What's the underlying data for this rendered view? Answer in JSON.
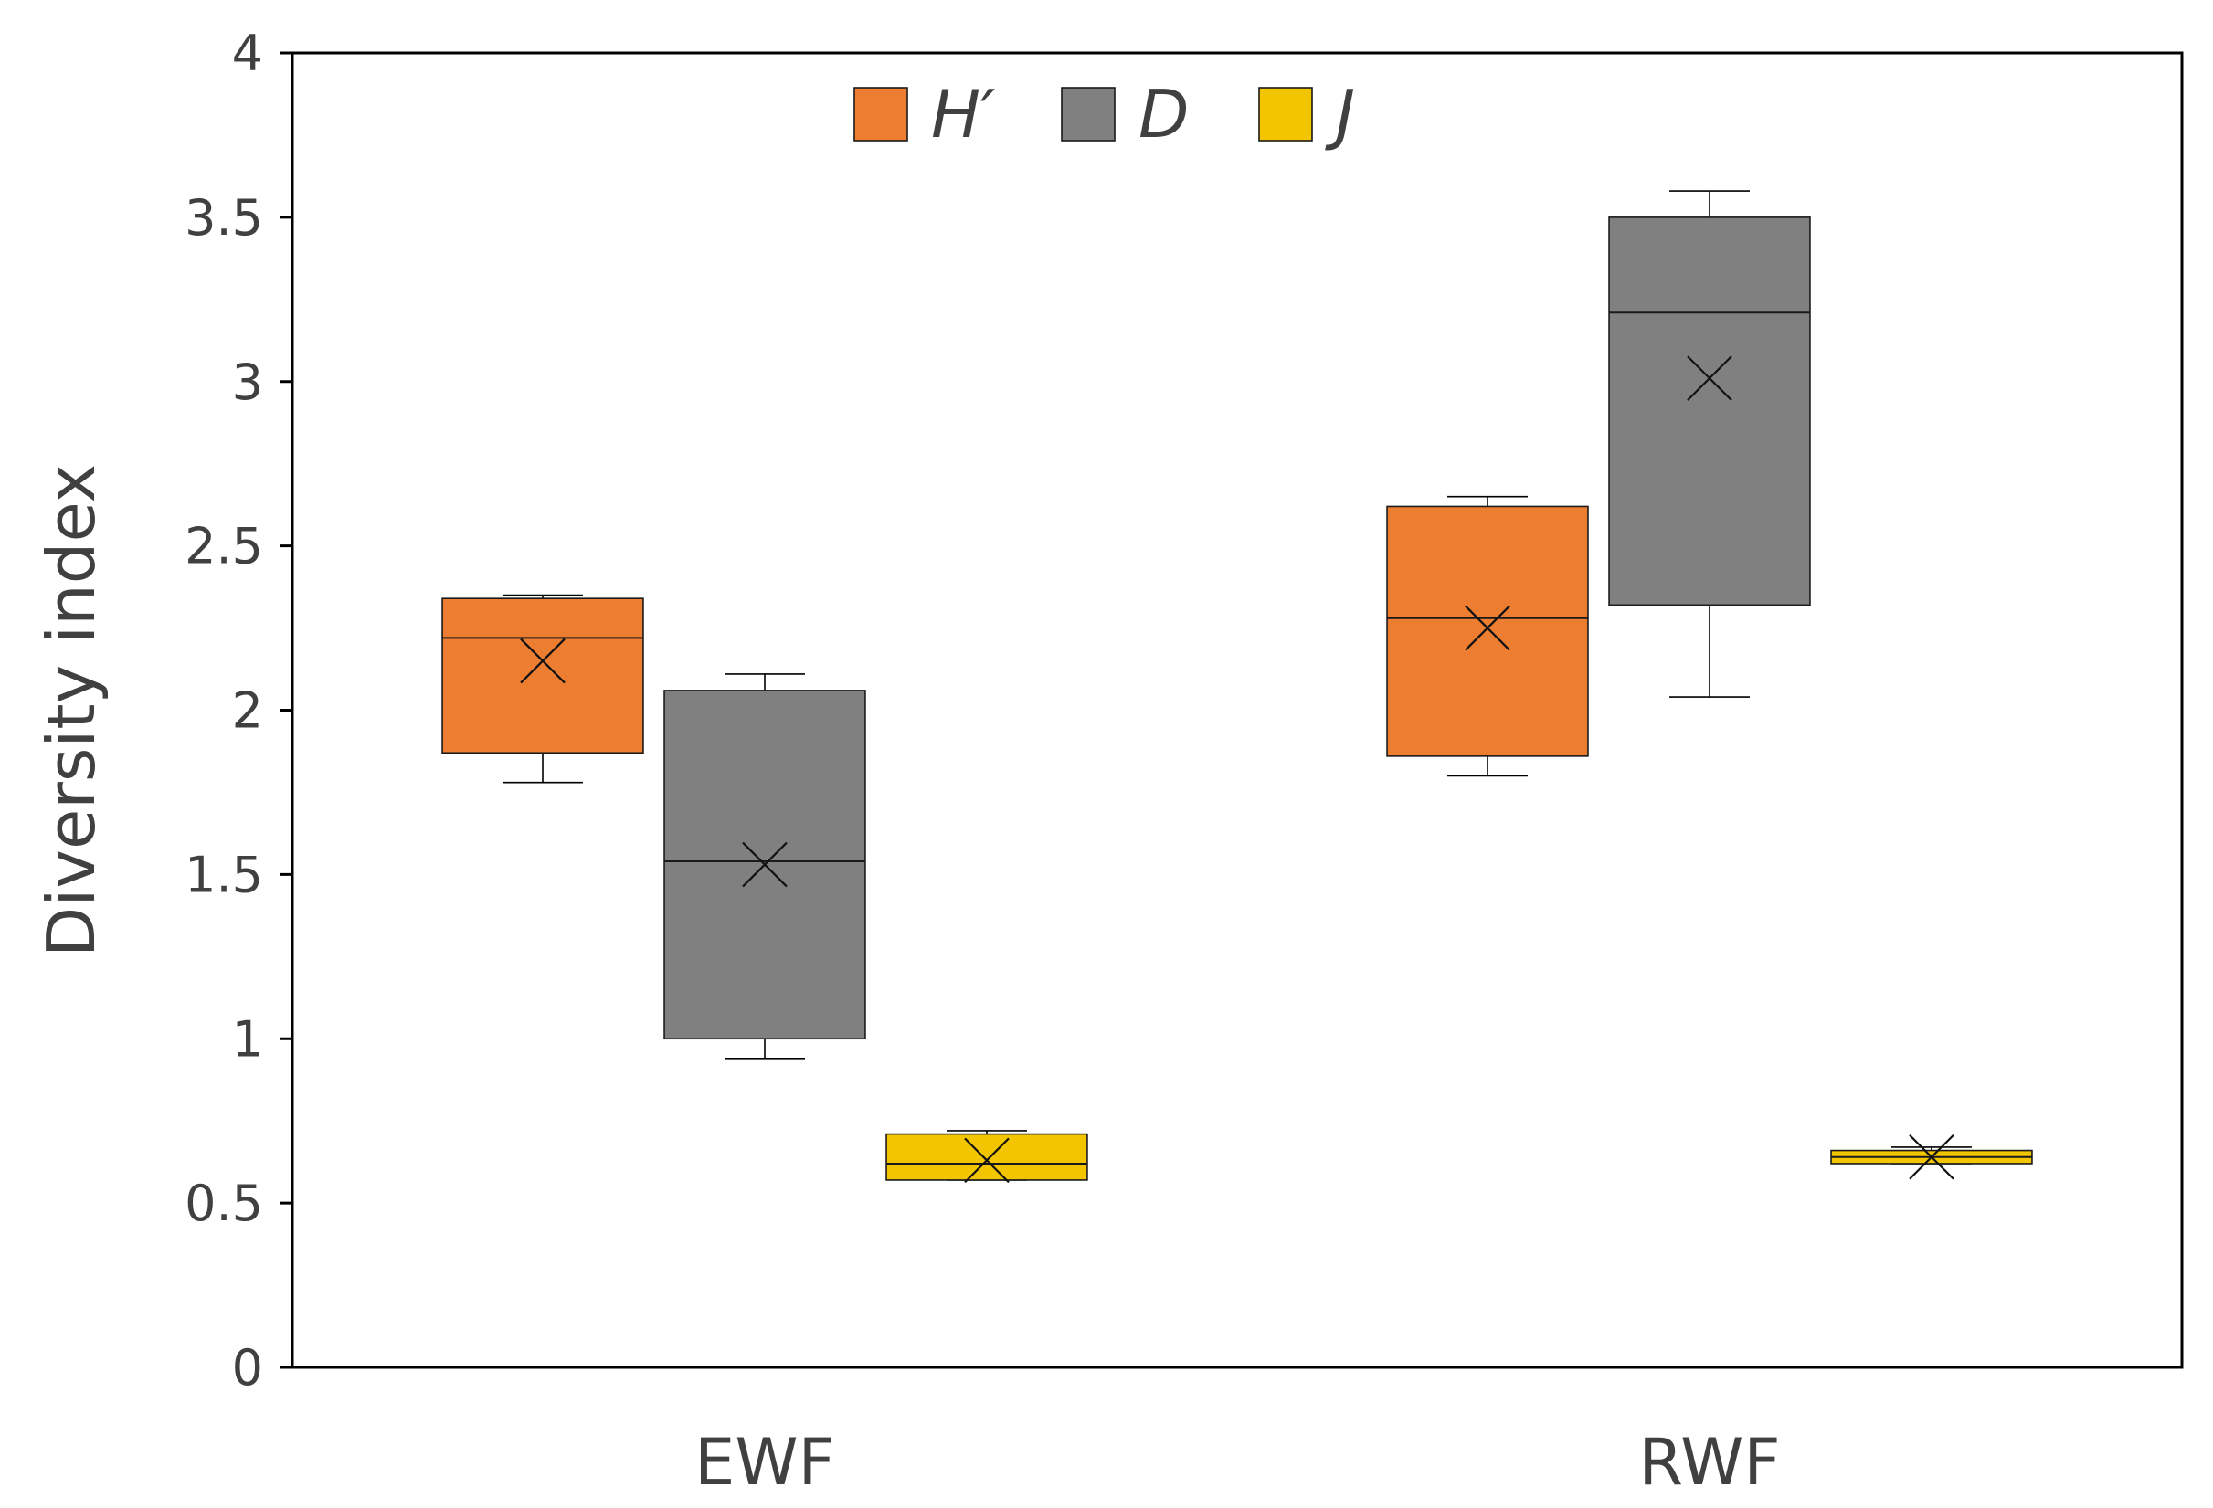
{
  "chart_data": {
    "type": "box",
    "ylabel": "Diversity index",
    "xlabel": "",
    "ylim": [
      0,
      4
    ],
    "yticks": [
      "0",
      "0.5",
      "1",
      "1.5",
      "2",
      "2.5",
      "3",
      "3.5",
      "4"
    ],
    "categories": [
      "EWF",
      "RWF"
    ],
    "legend_position": "top",
    "grid": false,
    "series": [
      {
        "name": "H′",
        "color": "#ED7D31",
        "boxes": [
          {
            "min": 1.78,
            "q1": 1.87,
            "median": 2.22,
            "q3": 2.34,
            "max": 2.35,
            "mean": 2.15
          },
          {
            "min": 1.8,
            "q1": 1.86,
            "median": 2.28,
            "q3": 2.62,
            "max": 2.65,
            "mean": 2.25
          }
        ]
      },
      {
        "name": "D",
        "color": "#808080",
        "boxes": [
          {
            "min": 0.94,
            "q1": 1.0,
            "median": 1.54,
            "q3": 2.06,
            "max": 2.11,
            "mean": 1.53
          },
          {
            "min": 2.04,
            "q1": 2.32,
            "median": 3.21,
            "q3": 3.5,
            "max": 3.58,
            "mean": 3.01
          }
        ]
      },
      {
        "name": "J",
        "color": "#F2C500",
        "boxes": [
          {
            "min": 0.57,
            "q1": 0.57,
            "median": 0.62,
            "q3": 0.71,
            "max": 0.72,
            "mean": 0.63
          },
          {
            "min": 0.62,
            "q1": 0.62,
            "median": 0.64,
            "q3": 0.66,
            "max": 0.67,
            "mean": 0.64
          }
        ]
      }
    ]
  }
}
